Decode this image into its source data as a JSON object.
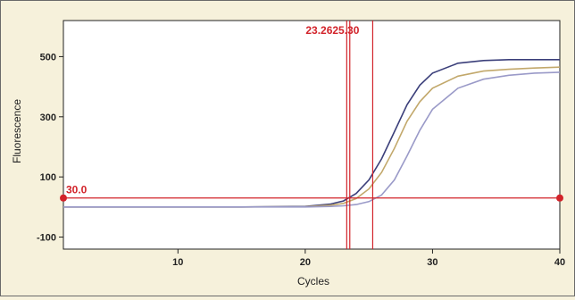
{
  "chart_data": {
    "type": "line",
    "xlabel": "Cycles",
    "ylabel": "Fluorescence",
    "xlim": [
      1,
      40
    ],
    "ylim": [
      -140,
      620
    ],
    "x_ticks": [
      10,
      20,
      30,
      40
    ],
    "y_ticks": [
      -100,
      100,
      300,
      500
    ],
    "x_tick_labels": [
      "10",
      "20",
      "30",
      "40"
    ],
    "y_tick_labels": [
      "-100",
      "100",
      "300",
      "500"
    ],
    "grid": false,
    "threshold": {
      "value": 30.0,
      "label": "30.0"
    },
    "ct_markers": [
      {
        "x": 23.26,
        "label": "23.26"
      },
      {
        "x": 23.5,
        "label": ""
      },
      {
        "x": 25.3,
        "label": "25.30"
      }
    ],
    "ct_label_text": "23.2625.30",
    "series": [
      {
        "color": "#3b3f7a",
        "x": [
          1,
          5,
          10,
          15,
          20,
          22,
          23,
          24,
          25,
          26,
          27,
          28,
          29,
          30,
          32,
          34,
          36,
          38,
          40
        ],
        "y": [
          0,
          0,
          0,
          0,
          2,
          10,
          20,
          45,
          90,
          160,
          250,
          340,
          405,
          445,
          478,
          487,
          490,
          490,
          490
        ]
      },
      {
        "color": "#c2a86b",
        "x": [
          1,
          5,
          10,
          15,
          20,
          22,
          23,
          24,
          25,
          26,
          27,
          28,
          29,
          30,
          32,
          34,
          36,
          38,
          40
        ],
        "y": [
          0,
          0,
          0,
          0,
          1,
          6,
          12,
          28,
          60,
          115,
          195,
          285,
          350,
          395,
          435,
          452,
          458,
          462,
          465
        ]
      },
      {
        "color": "#9a9ac8",
        "x": [
          1,
          5,
          10,
          15,
          20,
          22,
          23,
          24,
          25,
          26,
          27,
          28,
          29,
          30,
          32,
          34,
          36,
          38,
          40
        ],
        "y": [
          0,
          0,
          0,
          0,
          0,
          2,
          4,
          8,
          18,
          40,
          90,
          170,
          255,
          325,
          395,
          425,
          438,
          445,
          448
        ]
      }
    ]
  },
  "colors": {
    "threshold": "#d2232a",
    "marker": "#d2232a",
    "axis": "#222222",
    "plot_bg": "#ffffff"
  }
}
